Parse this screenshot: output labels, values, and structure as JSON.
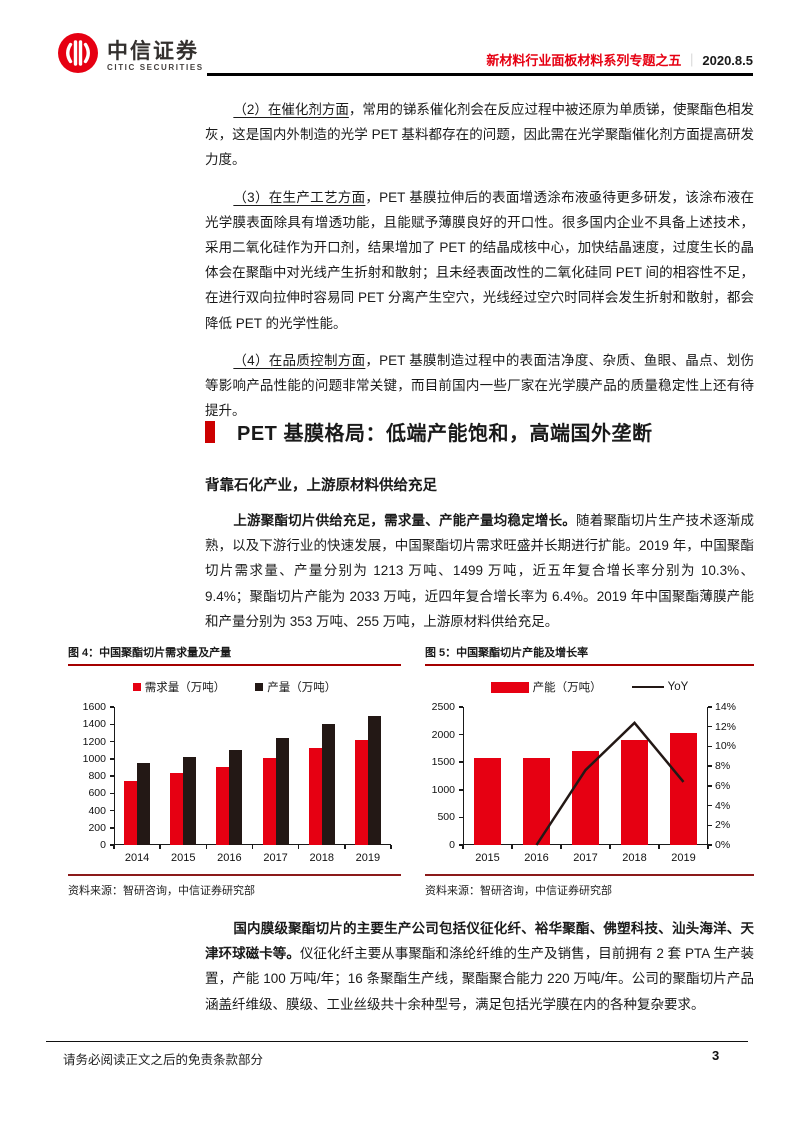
{
  "colors": {
    "accent_red": "#e60012",
    "bullet_red": "#cc0000",
    "title_rule_red": "#a40000",
    "source_rule_red": "#8b1a1a",
    "bar_black": "#231815"
  },
  "header": {
    "brand_cn": "中信证券",
    "brand_en": "CITIC SECURITIES",
    "logo_icon": "citic-logo-icon",
    "doc_title": "新材料行业面板材料系列专题之五",
    "separator": "｜",
    "date": "2020.8.5"
  },
  "section": {
    "title": "PET 基膜格局：低端产能饱和，高端国外垄断"
  },
  "subsection": {
    "title": "背靠石化产业，上游原材料供给充足"
  },
  "body": {
    "paras_top": [
      {
        "runs": [
          {
            "text": "（2）在催化剂方面",
            "style": "underline"
          },
          {
            "text": "，常用的锑系催化剂会在反应过程中被还原为单质锑，使聚酯色相发灰，这是国内外制造的光学 PET 基料都存在的问题，因此需在光学聚酯催化剂方面提高研发力度。"
          }
        ]
      },
      {
        "runs": [
          {
            "text": "（3）在生产工艺方面",
            "style": "underline"
          },
          {
            "text": "，PET 基膜拉伸后的表面增透涂布液亟待更多研发，该涂布液在光学膜表面除具有增透功能，且能赋予薄膜良好的开口性。很多国内企业不具备上述技术，采用二氧化硅作为开口剂，结果增加了 PET 的结晶成核中心，加快结晶速度，过度生长的晶体会在聚酯中对光线产生折射和散射；且未经表面改性的二氧化硅同 PET 间的相容性不足，在进行双向拉伸时容易同 PET 分离产生空穴，光线经过空穴时同样会发生折射和散射，都会降低 PET 的光学性能。"
          }
        ]
      },
      {
        "runs": [
          {
            "text": "（4）在品质控制方面",
            "style": "underline"
          },
          {
            "text": "，PET 基膜制造过程中的表面洁净度、杂质、鱼眼、晶点、划伤等影响产品性能的问题非常关键，而目前国内一些厂家在光学膜产品的质量稳定性上还有待提升。"
          }
        ]
      }
    ],
    "para_mid": {
      "runs": [
        {
          "text": "上游聚酯切片供给充足，需求量、产能产量均稳定增长。",
          "style": "bold"
        },
        {
          "text": "随着聚酯切片生产技术逐渐成熟，以及下游行业的快速发展，中国聚酯切片需求旺盛并长期进行扩能。2019 年，中国聚酯切片需求量、产量分别为 1213 万吨、1499 万吨，近五年复合增长率分别为 10.3%、9.4%；聚酯切片产能为 2033 万吨，近四年复合增长率为 6.4%。2019 年中国聚酯薄膜产能和产量分别为 353 万吨、255 万吨，上游原材料供给充足。"
        }
      ]
    },
    "para_bottom": {
      "runs": [
        {
          "text": "国内膜级聚酯切片的主要生产公司包括仪征化纤、裕华聚酯、佛塑科技、汕头海洋、天津环球磁卡等。",
          "style": "bold"
        },
        {
          "text": "仪征化纤主要从事聚酯和涤纶纤维的生产及销售，目前拥有 2 套 PTA 生产装置，产能 100 万吨/年；16 条聚酯生产线，聚酯聚合能力 220 万吨/年。公司的聚酯切片产品涵盖纤维级、膜级、工业丝级共十余种型号，满足包括光学膜在内的各种复杂要求。"
        }
      ]
    }
  },
  "chart_data": [
    {
      "type": "bar",
      "title": "图 4：中国聚酯切片需求量及产量",
      "source": "资料来源：智研咨询，中信证券研究部",
      "categories": [
        "2014",
        "2015",
        "2016",
        "2017",
        "2018",
        "2019"
      ],
      "series": [
        {
          "name": "需求量（万吨）",
          "color": "#e60012",
          "values": [
            743,
            830,
            900,
            1010,
            1120,
            1213
          ]
        },
        {
          "name": "产量（万吨）",
          "color": "#231815",
          "values": [
            950,
            1020,
            1100,
            1240,
            1400,
            1499
          ]
        }
      ],
      "ylim": [
        0,
        1600
      ],
      "ystep": 200,
      "grid": false,
      "legend_position": "top"
    },
    {
      "type": "bar+line",
      "title": "图 5：中国聚酯切片产能及增长率",
      "source": "资料来源：智研咨询，中信证券研究部",
      "categories": [
        "2015",
        "2016",
        "2017",
        "2018",
        "2019"
      ],
      "series": [
        {
          "name": "产能（万吨）",
          "color": "#e60012",
          "values": [
            1580,
            1580,
            1700,
            1910,
            2033
          ]
        }
      ],
      "line_series": {
        "name": "YoY",
        "color": "#231815",
        "values": [
          null,
          0,
          7.6,
          12.4,
          6.4
        ]
      },
      "ylim": [
        0,
        2500
      ],
      "ystep": 500,
      "y2lim": [
        0,
        14
      ],
      "y2step": 2,
      "y2suffix": "%",
      "grid": false,
      "legend_position": "top"
    }
  ],
  "footer": {
    "disclaimer": "请务必阅读正文之后的免责条款部分",
    "page": "3"
  }
}
